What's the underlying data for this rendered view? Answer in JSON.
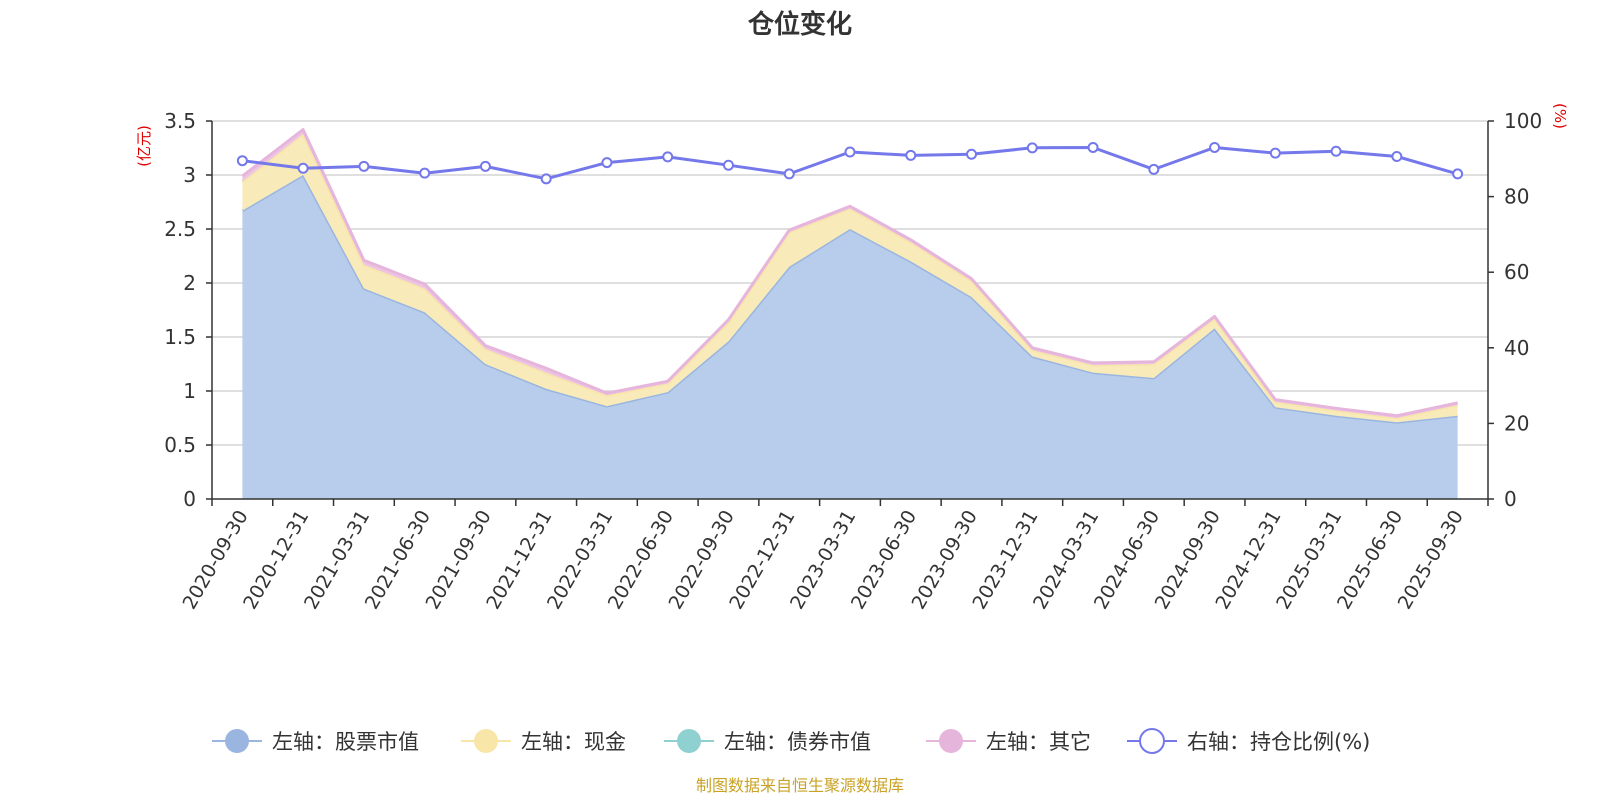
{
  "chart_data": {
    "type": "area",
    "title": "仓位变化",
    "left_axis_unit": "(亿元)",
    "right_axis_unit": "(%)",
    "left_ylim": [
      0,
      3.5
    ],
    "left_ticks": [
      "0",
      "0.5",
      "1",
      "1.5",
      "2",
      "2.5",
      "3",
      "3.5"
    ],
    "right_ylim": [
      0,
      100
    ],
    "right_ticks": [
      "0",
      "20",
      "40",
      "60",
      "80",
      "100"
    ],
    "categories": [
      "2020-09-30",
      "2020-12-31",
      "2021-03-31",
      "2021-06-30",
      "2021-09-30",
      "2021-12-31",
      "2022-03-31",
      "2022-06-30",
      "2022-09-30",
      "2022-12-31",
      "2023-03-31",
      "2023-06-30",
      "2023-09-30",
      "2023-12-31",
      "2024-03-31",
      "2024-06-30",
      "2024-09-30",
      "2024-12-31",
      "2025-03-31",
      "2025-06-30",
      "2025-09-30"
    ],
    "grid": true,
    "legend_position": "bottom",
    "series": [
      {
        "name": "左轴：股票市值",
        "axis": "left",
        "color": "#9ab6e0",
        "fill": "#b8cceb",
        "values": [
          2.67,
          3.0,
          1.95,
          1.73,
          1.25,
          1.02,
          0.86,
          0.99,
          1.46,
          2.15,
          2.5,
          2.2,
          1.87,
          1.32,
          1.17,
          1.12,
          1.58,
          0.85,
          0.77,
          0.71,
          0.77
        ]
      },
      {
        "name": "左轴：现金",
        "axis": "left",
        "color": "#f7e6a8",
        "fill": "#f8eab9",
        "values": [
          0.27,
          0.38,
          0.22,
          0.22,
          0.14,
          0.15,
          0.1,
          0.08,
          0.18,
          0.32,
          0.19,
          0.18,
          0.15,
          0.06,
          0.07,
          0.13,
          0.09,
          0.05,
          0.05,
          0.04,
          0.1
        ]
      },
      {
        "name": "左轴：债券市值",
        "axis": "left",
        "color": "#8fd0d0",
        "fill": "#a6dada",
        "values": [
          0,
          0,
          0,
          0,
          0,
          0,
          0,
          0,
          0,
          0,
          0,
          0,
          0,
          0,
          0,
          0,
          0,
          0,
          0,
          0,
          0
        ]
      },
      {
        "name": "左轴：其它",
        "axis": "left",
        "color": "#e6b5dc",
        "fill": "#eec4e5",
        "values": [
          0.05,
          0.04,
          0.04,
          0.04,
          0.03,
          0.04,
          0.02,
          0.02,
          0.02,
          0.02,
          0.02,
          0.02,
          0.02,
          0.02,
          0.02,
          0.02,
          0.02,
          0.02,
          0.02,
          0.02,
          0.02
        ]
      },
      {
        "name": "右轴：持仓比例(%)",
        "axis": "right",
        "color": "#7478ea",
        "values": [
          89.5,
          87.5,
          88.0,
          86.2,
          88.0,
          84.7,
          89.0,
          90.5,
          88.3,
          86.0,
          91.8,
          90.9,
          91.2,
          92.9,
          93.0,
          87.2,
          93.0,
          91.5,
          92.0,
          90.6,
          86.0
        ]
      }
    ]
  },
  "footer": {
    "source_note": "制图数据来自恒生聚源数据库"
  }
}
